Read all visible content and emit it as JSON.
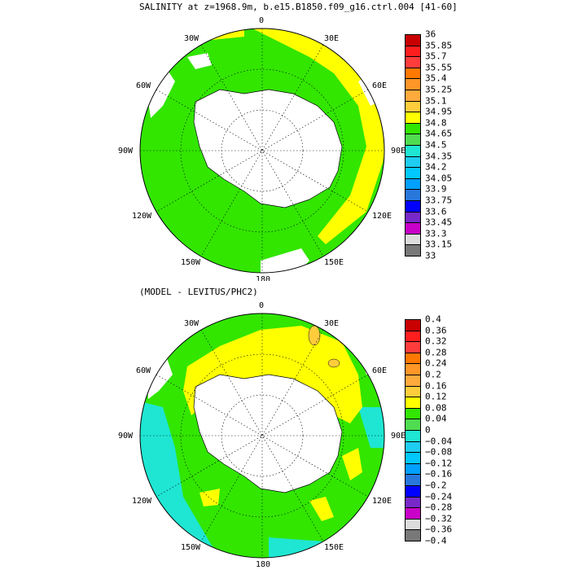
{
  "top": {
    "title": "SALINITY at z=1968.9m, b.e15.B1850.f09_g16.ctrl.004 [41-60]",
    "lon_labels": {
      "n": "0",
      "n30e": "30E",
      "n60e": "60E",
      "e90": "90E",
      "s120e": "120E",
      "s150e": "150E",
      "s180": "180",
      "s150w": "150W",
      "s120w": "120W",
      "w90": "90W",
      "n60w": "60W",
      "n30w": "30W"
    },
    "colorbar": {
      "ticks": [
        "36",
        "35.85",
        "35.7",
        "35.55",
        "35.4",
        "35.25",
        "35.1",
        "34.95",
        "34.8",
        "34.65",
        "34.5",
        "34.35",
        "34.2",
        "34.05",
        "33.9",
        "33.75",
        "33.6",
        "33.45",
        "33.3",
        "33.15",
        "33"
      ],
      "colors": [
        "#c80000",
        "#ff1e1e",
        "#ff3c3c",
        "#ff7800",
        "#ff9628",
        "#ffaa3c",
        "#ffcd3c",
        "#ffff00",
        "#32e600",
        "#50dc50",
        "#1ee6d2",
        "#1ecdf0",
        "#00c8ff",
        "#00a0ff",
        "#2878dc",
        "#0000ff",
        "#7828c8",
        "#c800c8",
        "#dcdcdc",
        "#787878"
      ]
    }
  },
  "bottom": {
    "title": "(MODEL - LEVITUS/PHC2)",
    "lon_labels": {
      "n": "0",
      "n30e": "30E",
      "n60e": "60E",
      "e90": "90E",
      "s120e": "120E",
      "s150e": "150E",
      "s180": "180",
      "s150w": "150W",
      "s120w": "120W",
      "w90": "90W",
      "n60w": "60W",
      "n30w": "30W"
    },
    "colorbar": {
      "ticks": [
        "0.4",
        "0.36",
        "0.32",
        "0.28",
        "0.24",
        "0.2",
        "0.16",
        "0.12",
        "0.08",
        "0.04",
        "0",
        "−0.04",
        "−0.08",
        "−0.12",
        "−0.16",
        "−0.2",
        "−0.24",
        "−0.28",
        "−0.32",
        "−0.36",
        "−0.4"
      ],
      "colors": [
        "#c80000",
        "#ff1e1e",
        "#ff3c3c",
        "#ff7800",
        "#ff9628",
        "#ffaa3c",
        "#ffcd3c",
        "#ffff00",
        "#32e600",
        "#50dc50",
        "#1ee6d2",
        "#1ecdf0",
        "#00c8ff",
        "#00a0ff",
        "#2878dc",
        "#0000ff",
        "#7828c8",
        "#c800c8",
        "#dcdcdc",
        "#787878"
      ]
    }
  }
}
